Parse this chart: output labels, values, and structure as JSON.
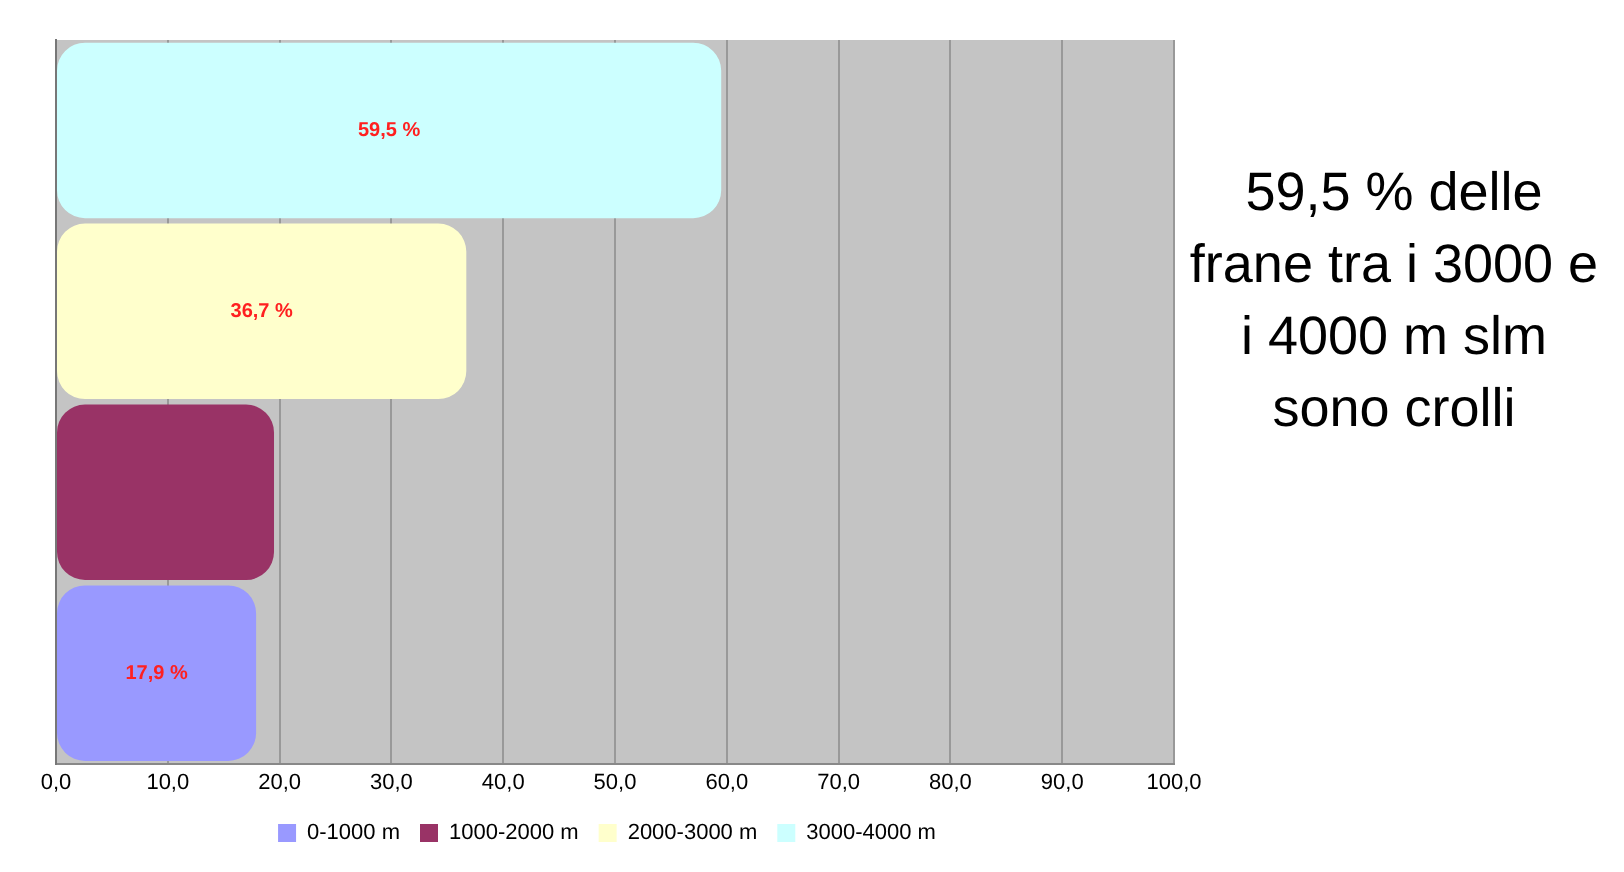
{
  "chart_data": {
    "type": "bar",
    "orientation": "horizontal",
    "categories": [
      null
    ],
    "series": [
      {
        "name": "0-1000 m",
        "color": "#9999ff",
        "values": [
          17.9
        ],
        "value_labels": [
          "17,9 %"
        ]
      },
      {
        "name": "1000-2000 m",
        "color": "#993366",
        "values": [
          19.5
        ],
        "value_labels": [
          null
        ]
      },
      {
        "name": "2000-3000 m",
        "color": "#ffffcc",
        "values": [
          36.7
        ],
        "value_labels": [
          "36,7 %"
        ]
      },
      {
        "name": "3000-4000 m",
        "color": "#ccffff",
        "values": [
          59.5
        ],
        "value_labels": [
          "59,5 %"
        ]
      }
    ],
    "xlim": [
      0,
      100
    ],
    "xticks": [
      {
        "value": 0,
        "label": "0,0"
      },
      {
        "value": 10,
        "label": "10,0"
      },
      {
        "value": 20,
        "label": "20,0"
      },
      {
        "value": 30,
        "label": "30,0"
      },
      {
        "value": 40,
        "label": "40,0"
      },
      {
        "value": 50,
        "label": "50,0"
      },
      {
        "value": 60,
        "label": "60,0"
      },
      {
        "value": 70,
        "label": "70,0"
      },
      {
        "value": 80,
        "label": "80,0"
      },
      {
        "value": 90,
        "label": "90,0"
      },
      {
        "value": 100,
        "label": "100,0"
      }
    ],
    "grid": "x",
    "legend": "bottom",
    "tick_labels": "x",
    "annotations": [
      "59,5 % delle frane tra i 3000 e i 4000 m slm sono crolli"
    ]
  }
}
